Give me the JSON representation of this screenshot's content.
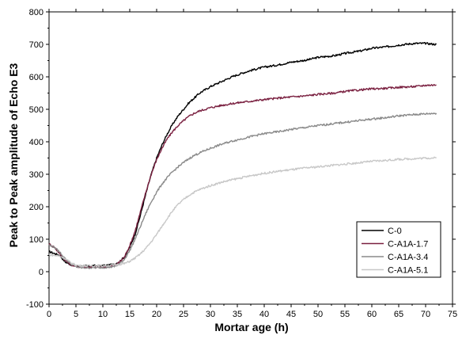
{
  "chart_data": {
    "type": "line",
    "title": "",
    "xlabel": "Mortar age (h)",
    "ylabel": "Peak to Peak amplitude of Echo E3",
    "xlim": [
      0,
      75
    ],
    "ylim": [
      -100,
      800
    ],
    "x_ticks": [
      0,
      5,
      10,
      15,
      20,
      25,
      30,
      35,
      40,
      45,
      50,
      55,
      60,
      65,
      70,
      75
    ],
    "y_ticks": [
      -100,
      0,
      100,
      200,
      300,
      400,
      500,
      600,
      700,
      800
    ],
    "grid": false,
    "legend_position": "bottom-right",
    "series": [
      {
        "name": "C-0",
        "color": "#000000",
        "points": [
          [
            0,
            62
          ],
          [
            2,
            50
          ],
          [
            3,
            30
          ],
          [
            4,
            22
          ],
          [
            5,
            18
          ],
          [
            6,
            17
          ],
          [
            8,
            18
          ],
          [
            10,
            18
          ],
          [
            12,
            22
          ],
          [
            13,
            30
          ],
          [
            14,
            45
          ],
          [
            15,
            75
          ],
          [
            16,
            115
          ],
          [
            17,
            175
          ],
          [
            18,
            240
          ],
          [
            19,
            300
          ],
          [
            20,
            350
          ],
          [
            21,
            390
          ],
          [
            22,
            425
          ],
          [
            23,
            455
          ],
          [
            24,
            480
          ],
          [
            25,
            500
          ],
          [
            26,
            520
          ],
          [
            27,
            535
          ],
          [
            28,
            550
          ],
          [
            29,
            560
          ],
          [
            30,
            570
          ],
          [
            32,
            585
          ],
          [
            34,
            600
          ],
          [
            36,
            612
          ],
          [
            38,
            622
          ],
          [
            40,
            630
          ],
          [
            42,
            635
          ],
          [
            45,
            645
          ],
          [
            48,
            652
          ],
          [
            50,
            660
          ],
          [
            53,
            665
          ],
          [
            55,
            672
          ],
          [
            58,
            680
          ],
          [
            60,
            688
          ],
          [
            63,
            693
          ],
          [
            65,
            698
          ],
          [
            68,
            703
          ],
          [
            70,
            703
          ],
          [
            72,
            700
          ]
        ]
      },
      {
        "name": "C-A1A-1.7",
        "color": "#7a2040",
        "points": [
          [
            0,
            85
          ],
          [
            1,
            75
          ],
          [
            2,
            55
          ],
          [
            3,
            35
          ],
          [
            4,
            22
          ],
          [
            5,
            16
          ],
          [
            6,
            14
          ],
          [
            8,
            14
          ],
          [
            10,
            14
          ],
          [
            12,
            18
          ],
          [
            13,
            28
          ],
          [
            14,
            45
          ],
          [
            15,
            80
          ],
          [
            16,
            125
          ],
          [
            17,
            185
          ],
          [
            18,
            245
          ],
          [
            19,
            300
          ],
          [
            20,
            345
          ],
          [
            21,
            380
          ],
          [
            22,
            410
          ],
          [
            23,
            432
          ],
          [
            24,
            450
          ],
          [
            25,
            465
          ],
          [
            26,
            478
          ],
          [
            27,
            488
          ],
          [
            28,
            495
          ],
          [
            30,
            505
          ],
          [
            32,
            512
          ],
          [
            35,
            520
          ],
          [
            38,
            526
          ],
          [
            40,
            530
          ],
          [
            43,
            535
          ],
          [
            45,
            538
          ],
          [
            48,
            542
          ],
          [
            50,
            546
          ],
          [
            53,
            550
          ],
          [
            55,
            555
          ],
          [
            58,
            560
          ],
          [
            60,
            563
          ],
          [
            63,
            565
          ],
          [
            65,
            568
          ],
          [
            68,
            570
          ],
          [
            70,
            574
          ],
          [
            72,
            575
          ]
        ]
      },
      {
        "name": "C-A1A-3.4",
        "color": "#8a8a8a",
        "points": [
          [
            0,
            82
          ],
          [
            1,
            75
          ],
          [
            2,
            60
          ],
          [
            3,
            40
          ],
          [
            4,
            25
          ],
          [
            5,
            15
          ],
          [
            6,
            12
          ],
          [
            8,
            12
          ],
          [
            10,
            13
          ],
          [
            12,
            15
          ],
          [
            13,
            22
          ],
          [
            14,
            38
          ],
          [
            15,
            65
          ],
          [
            16,
            100
          ],
          [
            17,
            140
          ],
          [
            18,
            180
          ],
          [
            19,
            215
          ],
          [
            20,
            245
          ],
          [
            21,
            270
          ],
          [
            22,
            290
          ],
          [
            23,
            308
          ],
          [
            24,
            323
          ],
          [
            25,
            336
          ],
          [
            26,
            348
          ],
          [
            27,
            358
          ],
          [
            28,
            366
          ],
          [
            30,
            380
          ],
          [
            32,
            392
          ],
          [
            34,
            402
          ],
          [
            36,
            410
          ],
          [
            38,
            418
          ],
          [
            40,
            425
          ],
          [
            43,
            432
          ],
          [
            45,
            438
          ],
          [
            48,
            445
          ],
          [
            50,
            450
          ],
          [
            53,
            456
          ],
          [
            55,
            460
          ],
          [
            58,
            466
          ],
          [
            60,
            470
          ],
          [
            63,
            475
          ],
          [
            65,
            480
          ],
          [
            68,
            484
          ],
          [
            70,
            486
          ],
          [
            72,
            488
          ]
        ]
      },
      {
        "name": "C-A1A-5.1",
        "color": "#c8c8c8",
        "points": [
          [
            0,
            52
          ],
          [
            2,
            48
          ],
          [
            3,
            40
          ],
          [
            4,
            28
          ],
          [
            5,
            20
          ],
          [
            6,
            18
          ],
          [
            8,
            18
          ],
          [
            10,
            18
          ],
          [
            12,
            20
          ],
          [
            14,
            25
          ],
          [
            15,
            32
          ],
          [
            16,
            42
          ],
          [
            17,
            55
          ],
          [
            18,
            72
          ],
          [
            19,
            92
          ],
          [
            20,
            115
          ],
          [
            21,
            140
          ],
          [
            22,
            165
          ],
          [
            23,
            188
          ],
          [
            24,
            207
          ],
          [
            25,
            222
          ],
          [
            26,
            235
          ],
          [
            27,
            245
          ],
          [
            28,
            253
          ],
          [
            30,
            265
          ],
          [
            32,
            275
          ],
          [
            34,
            283
          ],
          [
            36,
            290
          ],
          [
            38,
            297
          ],
          [
            40,
            303
          ],
          [
            43,
            310
          ],
          [
            45,
            314
          ],
          [
            48,
            320
          ],
          [
            50,
            323
          ],
          [
            53,
            328
          ],
          [
            55,
            331
          ],
          [
            58,
            336
          ],
          [
            60,
            340
          ],
          [
            63,
            343
          ],
          [
            65,
            346
          ],
          [
            68,
            348
          ],
          [
            70,
            350
          ],
          [
            72,
            350
          ]
        ]
      }
    ]
  }
}
